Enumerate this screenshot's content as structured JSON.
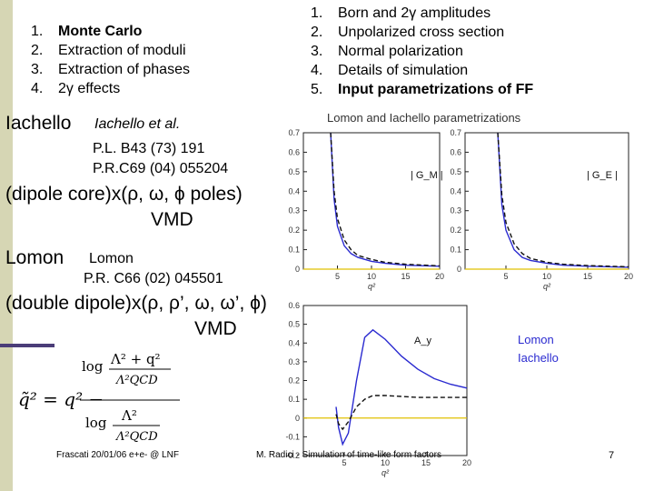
{
  "left_list": [
    {
      "num": "1.",
      "text": "Monte Carlo",
      "bold": true
    },
    {
      "num": "2.",
      "text": "Extraction of moduli",
      "bold": false
    },
    {
      "num": "3.",
      "text": "Extraction of phases",
      "bold": false
    },
    {
      "num": "4.",
      "text": "2γ effects",
      "bold": false
    }
  ],
  "right_list": [
    {
      "num": "1.",
      "text": "Born and 2γ amplitudes",
      "bold": false
    },
    {
      "num": "2.",
      "text": "Unpolarized cross section",
      "bold": false
    },
    {
      "num": "3.",
      "text": "Normal polarization",
      "bold": false
    },
    {
      "num": "4.",
      "text": "Details of simulation",
      "bold": false
    },
    {
      "num": "5.",
      "text": "Input parametrizations of FF",
      "bold": true
    }
  ],
  "iachello": {
    "label": "Iachello",
    "authors": "Iachello et al.",
    "ref1": "P.L. B43 (73) 191",
    "ref2": "P.R.C69 (04) 055204",
    "model_line1": "(dipole core)x(ρ, ω, ϕ poles)",
    "model_line2": "VMD"
  },
  "lomon": {
    "label": "Lomon",
    "authors": "Lomon",
    "ref": "P.R. C66 (02) 045501",
    "model_line1": "(double dipole)x(ρ, ρ’, ω, ω’, ϕ)",
    "model_line2": "VMD"
  },
  "figure": {
    "title": "Lomon and Iachello parametrizations",
    "panel_gm_label": "| G_M |",
    "panel_ge_label": "| G_E |",
    "panel_ay_label": "A_y",
    "legend_lomon": "Lomon",
    "legend_iachello": "Iachello",
    "colors": {
      "lomon": "#2a2ad0",
      "iachello": "#111111",
      "ref": "#e0c000"
    }
  },
  "chart_data": [
    {
      "type": "line",
      "panel": "|G_M|",
      "xlabel": "q²",
      "ylabel": "",
      "xlim": [
        0,
        20
      ],
      "ylim": [
        0,
        0.7
      ],
      "xticks": [
        5,
        10,
        15,
        20
      ],
      "yticks": [
        0,
        0.1,
        0.2,
        0.3,
        0.4,
        0.5,
        0.6,
        0.7
      ],
      "series": [
        {
          "name": "Lomon",
          "x": [
            4,
            4.5,
            5,
            6,
            7,
            8,
            10,
            12,
            15,
            20
          ],
          "y": [
            0.7,
            0.36,
            0.22,
            0.12,
            0.08,
            0.06,
            0.04,
            0.03,
            0.02,
            0.015
          ]
        },
        {
          "name": "Iachello",
          "x": [
            4,
            4.5,
            5,
            6,
            7,
            8,
            10,
            12,
            15,
            20
          ],
          "y": [
            0.7,
            0.4,
            0.26,
            0.15,
            0.1,
            0.07,
            0.05,
            0.035,
            0.025,
            0.017
          ]
        }
      ]
    },
    {
      "type": "line",
      "panel": "|G_E|",
      "xlabel": "q²",
      "ylabel": "",
      "xlim": [
        0,
        20
      ],
      "ylim": [
        0,
        0.7
      ],
      "xticks": [
        5,
        10,
        15,
        20
      ],
      "yticks": [
        0,
        0.1,
        0.2,
        0.3,
        0.4,
        0.5,
        0.6,
        0.7
      ],
      "series": [
        {
          "name": "Lomon",
          "x": [
            4,
            4.5,
            5,
            6,
            7,
            8,
            10,
            12,
            15,
            20
          ],
          "y": [
            0.7,
            0.33,
            0.2,
            0.1,
            0.06,
            0.045,
            0.03,
            0.02,
            0.015,
            0.01
          ]
        },
        {
          "name": "Iachello",
          "x": [
            4,
            4.5,
            5,
            6,
            7,
            8,
            10,
            12,
            15,
            20
          ],
          "y": [
            0.7,
            0.38,
            0.24,
            0.13,
            0.08,
            0.055,
            0.035,
            0.025,
            0.018,
            0.012
          ]
        }
      ]
    },
    {
      "type": "line",
      "panel": "A_y",
      "xlabel": "q²",
      "ylabel": "",
      "xlim": [
        0,
        20
      ],
      "ylim": [
        -0.2,
        0.6
      ],
      "xticks": [
        5,
        10,
        15,
        20
      ],
      "yticks": [
        -0.2,
        -0.1,
        0,
        0.1,
        0.2,
        0.3,
        0.4,
        0.5,
        0.6
      ],
      "series": [
        {
          "name": "Lomon",
          "x": [
            4,
            4.3,
            4.8,
            5.5,
            6.5,
            7.5,
            8.5,
            10,
            12,
            14,
            16,
            18,
            20
          ],
          "y": [
            0.06,
            -0.05,
            -0.14,
            -0.08,
            0.2,
            0.43,
            0.47,
            0.42,
            0.33,
            0.26,
            0.21,
            0.18,
            0.16
          ]
        },
        {
          "name": "Iachello",
          "x": [
            4,
            4.3,
            4.8,
            5.5,
            6.5,
            7.5,
            8.5,
            10,
            12,
            14,
            16,
            18,
            20
          ],
          "y": [
            0.02,
            -0.03,
            -0.06,
            -0.02,
            0.06,
            0.1,
            0.12,
            0.12,
            0.115,
            0.11,
            0.11,
            0.11,
            0.11
          ]
        }
      ]
    }
  ],
  "formula": {
    "lhs": "q̃² = q² −",
    "num": "log ( Λ² + q² ) / Λ²_QCD",
    "den": "log ( Λ² ) / Λ²_QCD"
  },
  "footer": {
    "left": "Frascati 20/01/06 e+e- @ LNF",
    "center": "M. Radici - Simulation of time-like form factors",
    "page": "7"
  }
}
